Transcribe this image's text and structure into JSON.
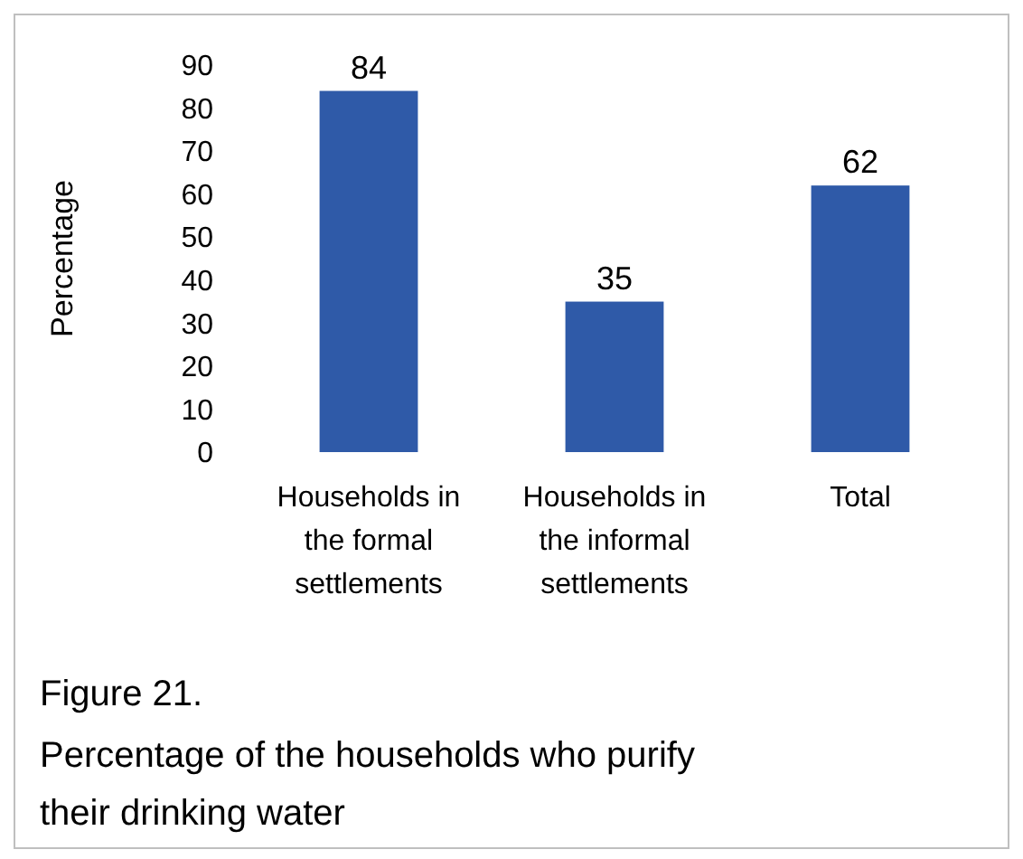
{
  "chart_data": {
    "type": "bar",
    "title": "Figure 21.",
    "subtitle": "Percentage of the households who purify their drinking water",
    "ylabel": "Percentage",
    "categories": [
      "Households in the formal settlements",
      "Households in the informal settlements",
      "Total"
    ],
    "values": [
      84,
      35,
      62
    ],
    "color": "#2f5aa8",
    "ylim": [
      0,
      90
    ],
    "yticks": [
      0,
      10,
      20,
      30,
      40,
      50,
      60,
      70,
      80,
      90
    ],
    "data_labels": true,
    "grid": false
  }
}
